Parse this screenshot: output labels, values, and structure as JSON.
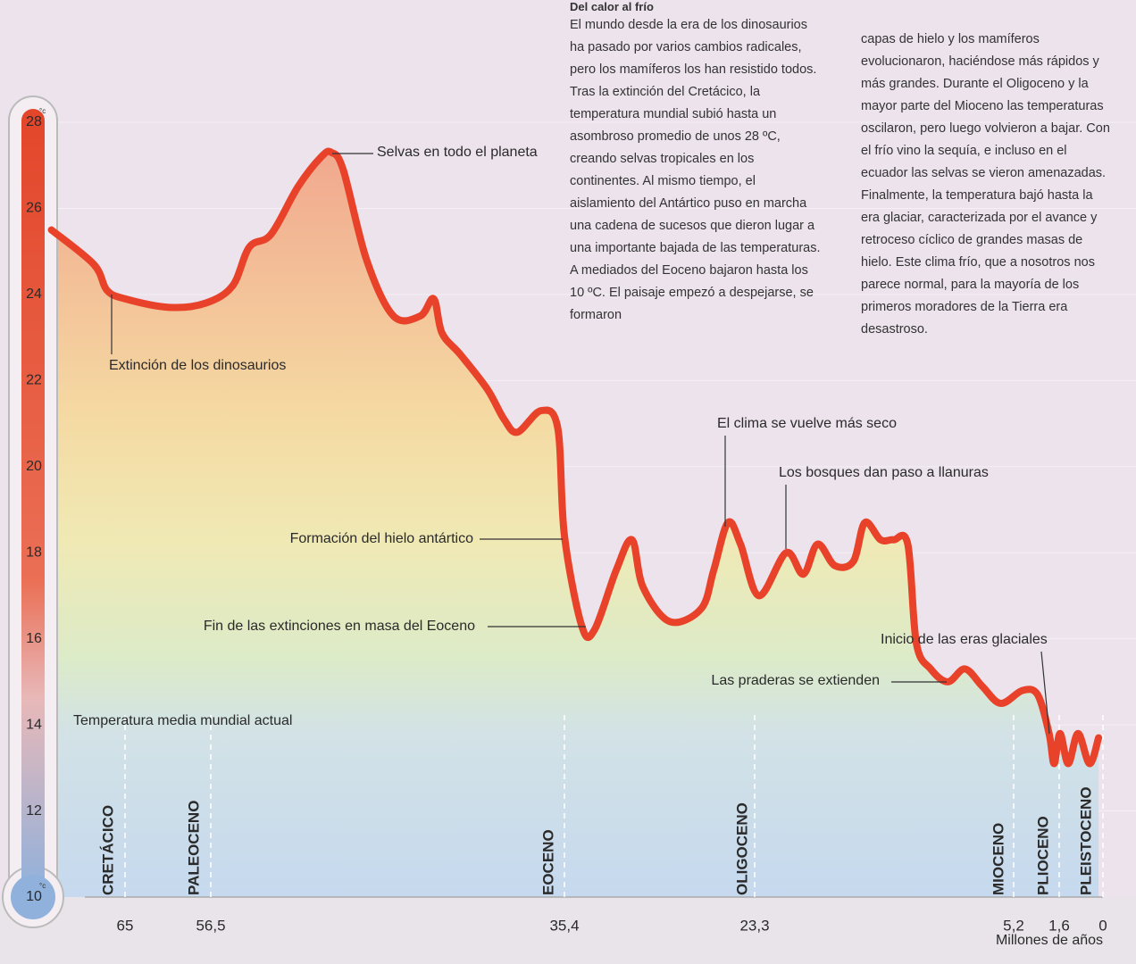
{
  "chart_data": {
    "type": "line",
    "sidebar": {
      "title": "Del calor al frío",
      "text_columns": [
        "El mundo desde la era de los dinosaurios ha pasado por varios cambios radicales, pero los mamíferos los han resistido todos. Tras la extinción del Cretácico, la temperatura mundial subió hasta un asombroso promedio de unos 28 ºC, creando selvas tropicales en los continentes. Al mismo tiempo, el aislamiento del Antártico puso en marcha una cadena de sucesos que dieron lugar a una importante bajada de las temperaturas. A mediados del Eoceno bajaron hasta los 10 ºC. El paisaje empezó a despejarse, se formaron",
        "capas de hielo y los mamíferos evolucionaron, haciéndose más rápidos y más grandes. Durante el Oligoceno y la mayor parte del Mioceno las temperaturas oscilaron, pero luego volvieron a bajar. Con el frío vino la sequía, e incluso en el ecuador las selvas se vieron amenazadas. Finalmente, la temperatura bajó hasta la era glaciar, caracterizada por el avance y retroceso cíclico de grandes masas de hielo. Este clima frío, que a nosotros nos parece normal, para la mayoría de los primeros moradores de la Tierra era desastroso."
      ]
    },
    "x_label": "Millones de años",
    "y_unit": "°c",
    "eras": [
      "CRETÁCICO",
      "PALEOCENO",
      "EOCENO",
      "OLIGOCENO",
      "MIOCENO",
      "PLIOCENO",
      "PLEISTOCENO"
    ],
    "annotations": [
      "Selvas en todo el planeta",
      "Extinción de los dinosaurios",
      "Formación del hielo antártico",
      "Fin de las extinciones en masa del Eoceno",
      "El clima se vuelve más seco",
      "Los bosques dan paso a llanuras",
      "Inicio de las eras glaciales",
      "Las praderas se extienden",
      "Temperatura media mundial actual"
    ],
    "series": [
      {
        "name": "Temperatura",
        "color": "#e8432a",
        "x": [
          72.3,
          68.1,
          66.8,
          65,
          60.6,
          57.0,
          55.2,
          54.2,
          52.9,
          51.3,
          49.9,
          49.3,
          48.6,
          47.2,
          45.6,
          44.0,
          43.2,
          42.7,
          41.6,
          40.0,
          39.0,
          38.2,
          36.8,
          35.8,
          35.4,
          34.3,
          33.5,
          32.1,
          31.1,
          30.4,
          28.7,
          26.7,
          25.9,
          25.0,
          24.2,
          23.0,
          21.1,
          19.9,
          18.9,
          17.7,
          16.4,
          15.6,
          14.5,
          13.6,
          12.6,
          12.0,
          11.0,
          9.8,
          8.6,
          7.4,
          6.1,
          4.5,
          3.3,
          2.4,
          2.0,
          1.57,
          1.27,
          0.91,
          0.49,
          0.16
        ],
        "values": [
          25.5,
          24.7,
          24.1,
          23.9,
          23.7,
          23.8,
          24.2,
          25.1,
          25.4,
          26.5,
          27.2,
          27.3,
          26.9,
          24.8,
          23.5,
          23.5,
          23.9,
          23.1,
          22.6,
          21.8,
          21.1,
          20.8,
          21.3,
          20.9,
          18.4,
          16.3,
          16.2,
          17.6,
          18.3,
          17.2,
          16.4,
          16.7,
          17.6,
          18.7,
          18.2,
          17.0,
          18.0,
          17.5,
          18.2,
          17.7,
          17.8,
          18.7,
          18.3,
          18.3,
          18.2,
          15.9,
          15.3,
          15.0,
          15.3,
          14.9,
          14.5,
          14.8,
          14.7,
          13.8,
          13.1,
          13.8,
          13.1,
          13.8,
          13.1,
          13.7
        ]
      }
    ],
    "xlim": [
      72.3,
      0
    ],
    "xticks": [
      65,
      {
        "value": 56.5,
        "label": "56,5"
      },
      {
        "value": 35.4,
        "label": "35,4"
      },
      {
        "value": 23.3,
        "label": "23,3"
      },
      {
        "value": 5.2,
        "label": "5,2"
      },
      {
        "value": 1.6,
        "label": "1,6"
      },
      0
    ],
    "ylim": [
      10,
      28
    ],
    "yticks": [
      10,
      12,
      14,
      16,
      18,
      20,
      22,
      24,
      26,
      28
    ],
    "grid": true
  }
}
